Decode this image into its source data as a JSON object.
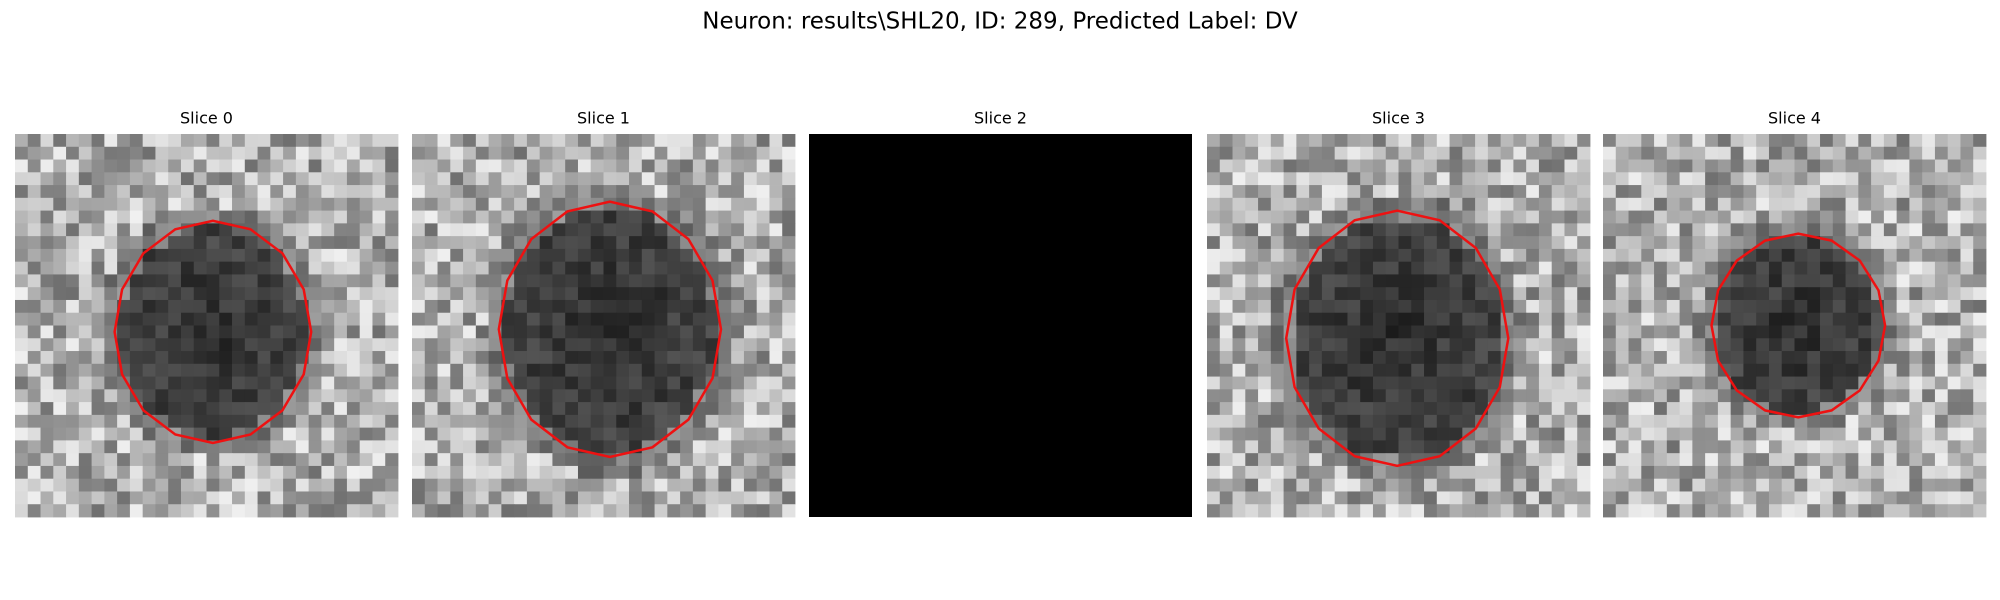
{
  "title": "Neuron: results\\SHL20, ID: 289, Predicted Label: DV",
  "panels": [
    {
      "title": "Slice 0"
    },
    {
      "title": "Slice 1"
    },
    {
      "title": "Slice 2"
    },
    {
      "title": "Slice 3"
    },
    {
      "title": "Slice 4"
    }
  ]
}
